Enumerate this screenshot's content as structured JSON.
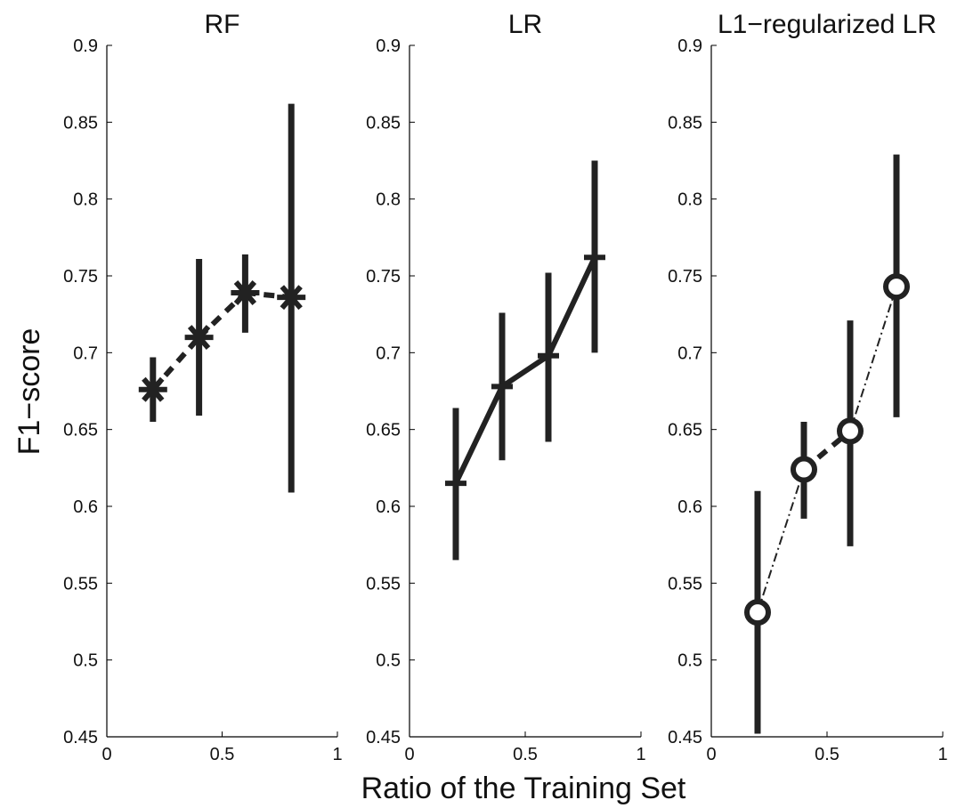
{
  "figure": {
    "ylabel": "F1−score",
    "xlabel": "Ratio of the Training Set"
  },
  "colors": {
    "line": "#222222",
    "axis": "#000000"
  },
  "chart_data": [
    {
      "type": "line",
      "title": "RF",
      "marker": "asterisk",
      "line_style": "dashed",
      "xlim": [
        0,
        1
      ],
      "ylim": [
        0.45,
        0.9
      ],
      "xticks": [
        "0",
        "0.5",
        "1"
      ],
      "yticks": [
        "0.45",
        "0.5",
        "0.55",
        "0.6",
        "0.65",
        "0.7",
        "0.75",
        "0.8",
        "0.85",
        "0.9"
      ],
      "x": [
        0.2,
        0.4,
        0.6,
        0.8
      ],
      "y": [
        0.676,
        0.71,
        0.739,
        0.736
      ],
      "err_low": [
        0.655,
        0.659,
        0.713,
        0.609
      ],
      "err_high": [
        0.697,
        0.761,
        0.764,
        0.862
      ]
    },
    {
      "type": "line",
      "title": "LR",
      "marker": "plus",
      "line_style": "solid",
      "xlim": [
        0,
        1
      ],
      "ylim": [
        0.45,
        0.9
      ],
      "xticks": [
        "0",
        "0.5",
        "1"
      ],
      "yticks": [
        "0.45",
        "0.5",
        "0.55",
        "0.6",
        "0.65",
        "0.7",
        "0.75",
        "0.8",
        "0.85",
        "0.9"
      ],
      "x": [
        0.2,
        0.4,
        0.6,
        0.8
      ],
      "y": [
        0.615,
        0.678,
        0.698,
        0.762
      ],
      "err_low": [
        0.565,
        0.63,
        0.642,
        0.7
      ],
      "err_high": [
        0.664,
        0.726,
        0.752,
        0.825
      ]
    },
    {
      "type": "line",
      "title": "L1−regularized LR",
      "marker": "circle",
      "line_style": "dashed",
      "xlim": [
        0,
        1
      ],
      "ylim": [
        0.45,
        0.9
      ],
      "xticks": [
        "0",
        "0.5",
        "1"
      ],
      "yticks": [
        "0.45",
        "0.5",
        "0.55",
        "0.6",
        "0.65",
        "0.7",
        "0.75",
        "0.8",
        "0.85",
        "0.9"
      ],
      "x": [
        0.2,
        0.4,
        0.6,
        0.8
      ],
      "y": [
        0.531,
        0.624,
        0.649,
        0.743
      ],
      "err_low": [
        0.452,
        0.592,
        0.574,
        0.658
      ],
      "err_high": [
        0.61,
        0.655,
        0.721,
        0.829
      ]
    }
  ]
}
